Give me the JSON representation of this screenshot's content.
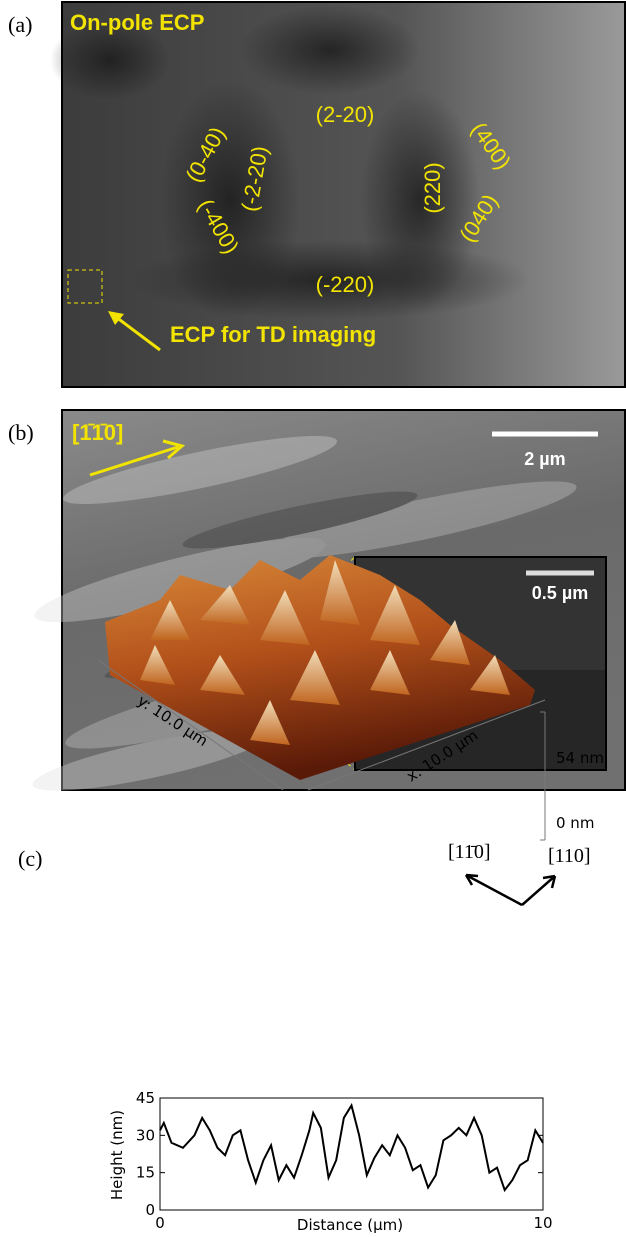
{
  "figure": {
    "panel_a": {
      "label": "(a)",
      "title": "On-pole ECP",
      "reflections": [
        "(2-20)",
        "(0-40)",
        "(-2-20)",
        "(-400)",
        "(220)",
        "(400)",
        "(040)",
        "(-220)"
      ],
      "annotation": "ECP for TD imaging"
    },
    "panel_b": {
      "label": "(b)",
      "direction": "[1̄​1̄0]",
      "scale_bar": "2 µm",
      "inset_scale_bar": "0.5 µm"
    },
    "panel_c": {
      "label": "(c)",
      "directions": [
        "[11̄0]",
        "[110]"
      ],
      "z_labels": [
        "54 nm",
        "0 nm"
      ],
      "y_axis": "y: 10.0 µm",
      "x_axis": "x: 10.0 µm"
    }
  },
  "chart_data": {
    "type": "line",
    "xlabel": "Distance (μm)",
    "ylabel": "Height (nm)",
    "x": [
      0,
      0.1,
      0.3,
      0.6,
      0.9,
      1.1,
      1.3,
      1.5,
      1.7,
      1.9,
      2.1,
      2.3,
      2.5,
      2.7,
      2.9,
      3.1,
      3.3,
      3.5,
      3.7,
      3.9,
      4.0,
      4.2,
      4.4,
      4.6,
      4.8,
      5.0,
      5.2,
      5.4,
      5.6,
      5.8,
      6.0,
      6.2,
      6.4,
      6.6,
      6.8,
      7.0,
      7.2,
      7.4,
      7.6,
      7.8,
      8.0,
      8.2,
      8.4,
      8.6,
      8.8,
      9.0,
      9.2,
      9.4,
      9.6,
      9.8,
      10.0
    ],
    "values": [
      32,
      35,
      27,
      25,
      30,
      37,
      32,
      25,
      22,
      30,
      32,
      20,
      11,
      20,
      26,
      12,
      18,
      13,
      22,
      32,
      39,
      33,
      13,
      20,
      37,
      42,
      30,
      14,
      21,
      26,
      22,
      30,
      25,
      16,
      18,
      9,
      14,
      28,
      30,
      33,
      30,
      37,
      30,
      15,
      17,
      8,
      12,
      18,
      20,
      32,
      27
    ],
    "color": "#000000",
    "xlim": [
      0,
      10
    ],
    "ylim": [
      0,
      45
    ],
    "xticks": [
      0,
      10
    ],
    "yticks": [
      0,
      15,
      30,
      45
    ]
  }
}
